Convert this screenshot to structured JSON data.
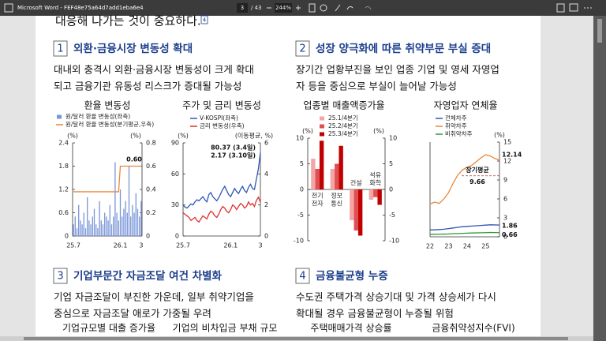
{
  "toolbar": {
    "title": "Microsoft Word - FEF48e75a64d7add1eba6e4",
    "page": "3",
    "page_count": "/ 43",
    "zoom": "244%"
  },
  "document": {
    "intro": "대응해 나가는 것이 중요하다.",
    "intro_note": "4",
    "sections": [
      {
        "number": "1",
        "heading": "외환·금융시장 변동성 확대",
        "lines": [
          "대내외 충격시 외환·금융시장 변동성이 크게 확대",
          "되고 금융기관 유동성 리스크가 증대될 가능성"
        ]
      },
      {
        "number": "2",
        "heading": "성장 양극화에 따른 취약부문 부실 증대",
        "lines": [
          "장기간 업황부진을 보인 업종 기업 및 영세 자영업",
          "자 등을 중심으로 부실이 늘어날 가능성"
        ]
      },
      {
        "number": "3",
        "heading": "기업부문간 자금조달 여건 차별화",
        "lines": [
          "기업 자금조달이 부진한 가운데, 일부 취약기업을",
          "중심으로 자금조달 애로가 가중될 우려"
        ]
      },
      {
        "number": "4",
        "heading": "금융불균형 누증",
        "lines": [
          "수도권 주택가격 상승기대 및 가격 상승세가 다시",
          "확대될 경우 금융불균형이 누증될 위험"
        ]
      }
    ],
    "pending_titles": [
      "기업규모별 대출 증가율",
      "기업의 비차입금 부채 규모",
      "주택매매가격 상승률",
      "금융취약성지수(FVI)"
    ]
  },
  "chart_data": [
    {
      "type": "combo",
      "title": "환율 변동성",
      "categories": [
        "25.7",
        null,
        null,
        null,
        null,
        null,
        null,
        null,
        null,
        null,
        null,
        null,
        null,
        null,
        null,
        null,
        null,
        null,
        null,
        null,
        null,
        null,
        null,
        null,
        null,
        null,
        null,
        "26.1",
        null,
        null,
        null,
        null,
        null,
        null,
        null,
        null,
        null,
        null,
        null,
        "3"
      ],
      "series": [
        {
          "name": "원/달러 환율 변동성(좌축)",
          "type": "bar",
          "color": "#7b96d8",
          "values": [
            0.3,
            0.5,
            0.2,
            0.8,
            0.4,
            0.3,
            0.6,
            0.2,
            1.0,
            0.4,
            0.3,
            0.5,
            0.7,
            0.3,
            0.2,
            0.9,
            0.4,
            0.3,
            0.6,
            0.5,
            0.4,
            0.8,
            0.3,
            0.5,
            1.9,
            0.6,
            0.4,
            1.2,
            0.5,
            0.7,
            0.9,
            0.6,
            1.8,
            0.5,
            0.8,
            0.6,
            1.1,
            0.7,
            0.5,
            0.9
          ]
        },
        {
          "name": "원/달러 환율 변동성(분기평균,우축)",
          "type": "line",
          "axis": "y2",
          "color": "#e8873a",
          "values": [
            0.38,
            0.38,
            0.38,
            0.38,
            0.38,
            0.38,
            0.38,
            0.38,
            0.38,
            0.38,
            0.38,
            0.38,
            0.38,
            0.38,
            0.38,
            0.38,
            0.38,
            0.38,
            0.38,
            0.38,
            0.38,
            0.38,
            0.38,
            0.38,
            0.38,
            0.38,
            0.38,
            0.6,
            0.6,
            0.6,
            0.6,
            0.6,
            0.6,
            0.6,
            0.6,
            0.6,
            0.6,
            0.6,
            0.6,
            0.6
          ]
        }
      ],
      "y_unit": "(%)",
      "y2_unit": "(%)",
      "ylim": [
        0,
        2.4
      ],
      "yticks": [
        0,
        0.6,
        1.2,
        1.8,
        2.4
      ],
      "y2lim": [
        0,
        0.8
      ],
      "y2ticks": [
        0,
        0.2,
        0.4,
        0.6,
        0.8
      ],
      "annotations": [
        "0.60"
      ],
      "legend": "top-left"
    },
    {
      "type": "line",
      "title": "주가 및 금리 변동성",
      "categories": [
        "25.7",
        null,
        null,
        null,
        null,
        null,
        null,
        null,
        null,
        null,
        null,
        null,
        null,
        null,
        null,
        null,
        null,
        null,
        null,
        null,
        null,
        null,
        null,
        null,
        "26.1",
        null,
        null,
        null,
        null,
        null,
        null,
        null,
        null,
        null,
        null,
        null,
        null,
        null,
        null,
        "3"
      ],
      "series": [
        {
          "name": "V-KOSPI(좌축)",
          "color": "#2f55b5",
          "values": [
            30,
            28,
            27,
            29,
            31,
            30,
            33,
            35,
            34,
            36,
            38,
            35,
            33,
            40,
            42,
            38,
            36,
            34,
            37,
            41,
            45,
            48,
            44,
            40,
            38,
            42,
            46,
            43,
            41,
            45,
            48,
            44,
            42,
            47,
            50,
            46,
            45,
            55,
            65,
            80.37
          ]
        },
        {
          "name": "금리 변동성(우축)",
          "axis": "y2",
          "color": "#e03030",
          "values": [
            1.5,
            1.4,
            1.3,
            1.2,
            1.0,
            1.1,
            1.2,
            1.0,
            0.9,
            1.1,
            1.3,
            1.2,
            1.1,
            1.4,
            1.6,
            1.5,
            1.3,
            1.2,
            1.4,
            1.7,
            1.9,
            1.8,
            1.6,
            1.5,
            1.7,
            2.0,
            1.9,
            1.7,
            1.9,
            2.1,
            2.0,
            1.8,
            1.9,
            2.2,
            2.0,
            2.1,
            1.9,
            2.3,
            2.5,
            2.17
          ]
        }
      ],
      "y_unit": "(%)",
      "y2_unit": "(이동평균, %)",
      "ylim": [
        0,
        90
      ],
      "yticks": [
        0,
        30,
        60,
        90
      ],
      "y2lim": [
        0,
        6
      ],
      "y2ticks": [
        0,
        2,
        4,
        6
      ],
      "annotations": [
        "80.37 (3.4일)",
        "2.17 (3.10일)"
      ],
      "legend": "top-left"
    },
    {
      "type": "bar",
      "title": "업종별 매출액증가율",
      "categories": [
        [
          "전기",
          "전자"
        ],
        [
          "정보",
          "통신"
        ],
        [
          "건설"
        ],
        [
          "석유",
          "화학"
        ]
      ],
      "series": [
        {
          "name": "25.1/4분기",
          "color": "#f4a5a5",
          "values": [
            6,
            4,
            -6,
            -2
          ]
        },
        {
          "name": "25.2/4분기",
          "color": "#e05050",
          "values": [
            4,
            5,
            -8,
            -1.5
          ]
        },
        {
          "name": "25.3/4분기",
          "color": "#c00000",
          "values": [
            9.5,
            8.5,
            -9,
            -3
          ]
        }
      ],
      "y_unit": "(%)",
      "y2_unit": "(%)",
      "ylim": [
        -10,
        10
      ],
      "yticks": [
        10,
        5,
        0,
        -5,
        -10
      ],
      "y2lim": [
        -10,
        10
      ],
      "y2ticks": [
        10,
        5,
        0,
        -5,
        -10
      ],
      "legend": "top-left"
    },
    {
      "type": "line",
      "title": "자영업자 연체율",
      "categories": [
        "22",
        null,
        null,
        null,
        "23",
        null,
        null,
        null,
        "24",
        null,
        null,
        null,
        "25",
        null,
        null,
        null
      ],
      "series": [
        {
          "name": "전체차주",
          "color": "#2f55b5",
          "values": [
            1.1,
            1.1,
            1.15,
            1.2,
            1.3,
            1.4,
            1.5,
            1.6,
            1.65,
            1.7,
            1.75,
            1.8,
            1.85,
            1.9,
            1.88,
            1.86
          ]
        },
        {
          "name": "취약차주",
          "color": "#e8873a",
          "values": [
            5.2,
            5.5,
            5.3,
            6.0,
            7.0,
            8.5,
            9.8,
            10.6,
            11.0,
            11.3,
            11.9,
            12.5,
            13.0,
            12.8,
            12.4,
            12.14
          ]
        },
        {
          "name": "비취약차주",
          "color": "#2e9a3a",
          "values": [
            0.4,
            0.4,
            0.42,
            0.43,
            0.45,
            0.5,
            0.52,
            0.55,
            0.58,
            0.6,
            0.62,
            0.64,
            0.66,
            0.68,
            0.67,
            0.66
          ]
        }
      ],
      "y_unit": "(%)",
      "y_axis_side": "right",
      "ylim": [
        0,
        15
      ],
      "yticks": [
        0,
        3,
        6,
        9,
        12,
        15
      ],
      "reference_line": {
        "label": "장기평균",
        "value": 9.66
      },
      "end_labels": true,
      "legend": "top-left"
    }
  ]
}
